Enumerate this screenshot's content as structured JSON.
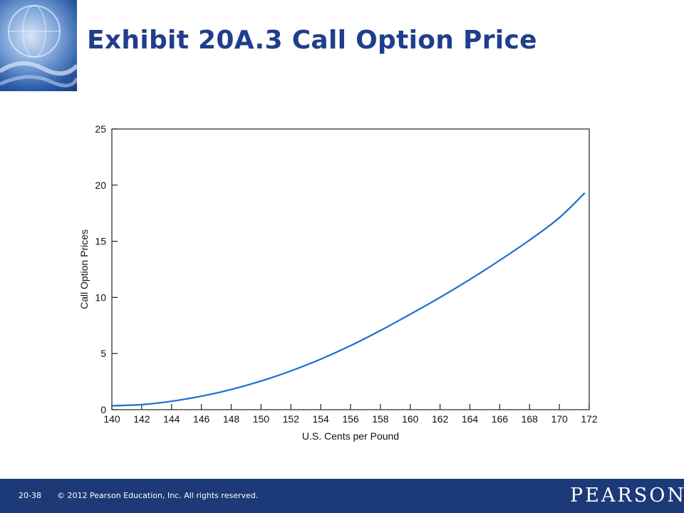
{
  "slide": {
    "title": "Exhibit 20A.3  Call Option Price",
    "slide_number": "20-38",
    "copyright": "© 2012 Pearson Education, Inc. All rights reserved.",
    "brand": "PEARSON"
  },
  "colors": {
    "title": "#1f3f8c",
    "line": "#1a6fd0",
    "footer": "#1d3a78"
  },
  "chart_data": {
    "type": "line",
    "title": "",
    "xlabel": "U.S. Cents per Pound",
    "ylabel": "Call Option Prices",
    "xlim": [
      140,
      172
    ],
    "ylim": [
      0,
      25
    ],
    "xticks": [
      140,
      142,
      144,
      146,
      148,
      150,
      152,
      154,
      156,
      158,
      160,
      162,
      164,
      166,
      168,
      170,
      172
    ],
    "yticks": [
      0,
      5,
      10,
      15,
      20,
      25
    ],
    "grid": false,
    "series": [
      {
        "x": [
          140,
          142,
          144,
          146,
          148,
          150,
          152,
          154,
          156,
          158,
          160,
          162,
          164,
          166,
          168,
          170,
          171.7
        ],
        "y": [
          0.35,
          0.45,
          0.75,
          1.2,
          1.8,
          2.55,
          3.45,
          4.5,
          5.7,
          7.05,
          8.5,
          10.0,
          11.6,
          13.3,
          15.1,
          17.1,
          19.3
        ]
      }
    ]
  }
}
